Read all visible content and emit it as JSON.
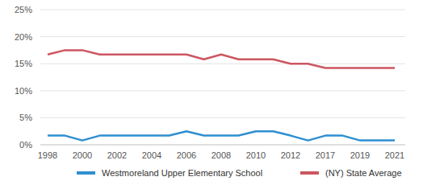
{
  "chart_data": {
    "type": "line",
    "categories": [
      "1998",
      null,
      "2000",
      null,
      "2002",
      null,
      "2004",
      null,
      "2006",
      null,
      "2008",
      null,
      "2010",
      null,
      "2012",
      null,
      "2017",
      null,
      "2019",
      null,
      "2021"
    ],
    "series": [
      {
        "name": "Westmoreland Upper Elementary School",
        "color": "#2f8fd0",
        "values": [
          1.7,
          1.7,
          0.8,
          1.7,
          1.7,
          1.7,
          1.7,
          1.7,
          2.5,
          1.7,
          1.7,
          1.7,
          2.5,
          2.5,
          1.7,
          0.8,
          1.7,
          1.7,
          0.8,
          0.8,
          0.8
        ]
      },
      {
        "name": "(NY) State Average",
        "color": "#cd5660",
        "values": [
          16.7,
          17.5,
          17.5,
          16.7,
          16.7,
          16.7,
          16.7,
          16.7,
          16.7,
          15.8,
          16.7,
          15.8,
          15.8,
          15.8,
          15,
          15,
          14.2,
          14.2,
          14.2,
          14.2,
          14.2
        ]
      }
    ],
    "ylim": [
      0,
      25
    ],
    "yticks": [
      {
        "value": 0,
        "label": "0%"
      },
      {
        "value": 5,
        "label": "5%"
      },
      {
        "value": 10,
        "label": "10%"
      },
      {
        "value": 15,
        "label": "15%"
      },
      {
        "value": 20,
        "label": "20%"
      },
      {
        "value": 25,
        "label": "25%"
      }
    ],
    "grid": true
  }
}
